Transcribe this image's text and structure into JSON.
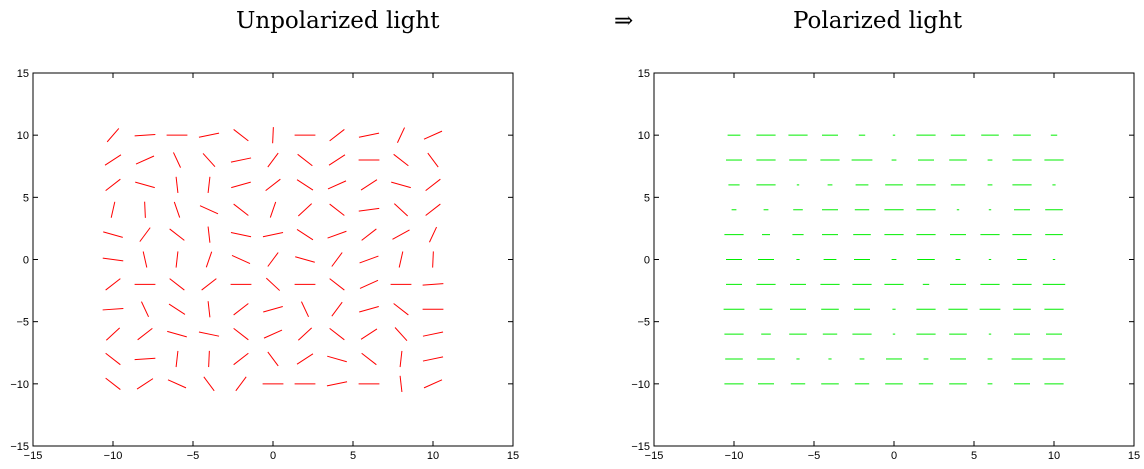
{
  "headings": {
    "left": "Unpolarized light",
    "arrow": "⇒",
    "right": "Polarized light"
  },
  "chart_data": [
    {
      "type": "quiver",
      "title": "",
      "xlabel": "",
      "ylabel": "",
      "xlim": [
        -15,
        15
      ],
      "ylim": [
        -15,
        15
      ],
      "xticks": [
        "−15",
        "−10",
        "−5",
        "0",
        "5",
        "10",
        "15"
      ],
      "yticks": [
        "−15",
        "−10",
        "−5",
        "0",
        "5",
        "10",
        "15"
      ],
      "grid": false,
      "color": "#ff0000",
      "x": [
        -10,
        -8,
        -6,
        -4,
        -2,
        0,
        2,
        4,
        6,
        8,
        10
      ],
      "y": [
        10,
        8,
        6,
        4,
        2,
        0,
        -2,
        -4,
        -6,
        -8,
        -10
      ],
      "segment_length": 1.3,
      "angles_deg": [
        [
          56,
          5,
          0,
          15,
          -45,
          88,
          0,
          45,
          15,
          70,
          30
        ],
        [
          40,
          30,
          -70,
          -55,
          15,
          60,
          -45,
          40,
          0,
          -45,
          -60
        ],
        [
          45,
          -20,
          -85,
          85,
          20,
          45,
          -40,
          30,
          40,
          -20,
          45
        ],
        [
          80,
          -88,
          -75,
          -30,
          -45,
          75,
          50,
          -45,
          10,
          -50,
          45
        ],
        [
          -20,
          60,
          -45,
          -85,
          -15,
          15,
          -40,
          25,
          45,
          35,
          70
        ],
        [
          -10,
          -80,
          85,
          75,
          -30,
          60,
          -20,
          60,
          25,
          80,
          88
        ],
        [
          45,
          0,
          -45,
          45,
          0,
          -50,
          0,
          -45,
          30,
          0,
          5
        ],
        [
          5,
          -70,
          -40,
          -85,
          45,
          20,
          -70,
          60,
          20,
          -45,
          0
        ],
        [
          50,
          45,
          -20,
          -15,
          -45,
          30,
          50,
          -45,
          40,
          -55,
          15
        ],
        [
          -45,
          5,
          85,
          88,
          45,
          -60,
          40,
          -20,
          -45,
          85,
          15
        ],
        [
          -45,
          40,
          -30,
          -60,
          60,
          0,
          0,
          15,
          0,
          -85,
          30
        ]
      ]
    },
    {
      "type": "quiver",
      "title": "",
      "xlabel": "",
      "ylabel": "",
      "xlim": [
        -15,
        15
      ],
      "ylim": [
        -15,
        15
      ],
      "xticks": [
        "−15",
        "−10",
        "−5",
        "0",
        "5",
        "10",
        "15"
      ],
      "yticks": [
        "−15",
        "−10",
        "−5",
        "0",
        "5",
        "10",
        "15"
      ],
      "grid": false,
      "color": "#00ee00",
      "x": [
        -10,
        -8,
        -6,
        -4,
        -2,
        0,
        2,
        4,
        6,
        8,
        10
      ],
      "y": [
        10,
        8,
        6,
        4,
        2,
        0,
        -2,
        -4,
        -6,
        -8,
        -10
      ],
      "angle_deg": 0,
      "lengths": [
        [
          0.8,
          1.2,
          1.2,
          1.0,
          0.4,
          0.15,
          1.2,
          0.9,
          1.1,
          1.1,
          0.4
        ],
        [
          1.0,
          1.2,
          1.1,
          1.2,
          1.3,
          0.3,
          1.0,
          1.1,
          0.3,
          1.2,
          1.2
        ],
        [
          0.7,
          1.2,
          0.15,
          0.3,
          0.8,
          1.1,
          1.2,
          0.9,
          0.3,
          1.2,
          0.2
        ],
        [
          0.3,
          0.3,
          0.6,
          1.0,
          0.9,
          1.2,
          1.2,
          0.15,
          0.15,
          1.0,
          1.1
        ],
        [
          1.2,
          0.5,
          0.7,
          1.0,
          1.1,
          1.2,
          1.2,
          1.0,
          1.2,
          1.2,
          1.1
        ],
        [
          1.0,
          1.0,
          0.2,
          0.8,
          1.0,
          0.3,
          1.1,
          0.3,
          0.15,
          0.6,
          0.15
        ],
        [
          1.0,
          1.2,
          1.0,
          1.2,
          1.2,
          1.2,
          0.4,
          1.0,
          1.2,
          1.2,
          1.4
        ],
        [
          1.3,
          0.8,
          1.0,
          1.1,
          1.0,
          0.2,
          1.2,
          1.2,
          1.3,
          1.1,
          1.2
        ],
        [
          1.2,
          0.6,
          1.1,
          0.9,
          1.2,
          0.15,
          1.2,
          1.1,
          0.15,
          1.0,
          1.0
        ],
        [
          1.1,
          1.1,
          0.2,
          0.2,
          0.3,
          1.0,
          0.3,
          1.0,
          0.3,
          1.3,
          1.4
        ],
        [
          1.2,
          1.0,
          0.9,
          1.1,
          0.9,
          1.1,
          0.9,
          1.1,
          0.3,
          1.0,
          1.2
        ]
      ]
    }
  ]
}
